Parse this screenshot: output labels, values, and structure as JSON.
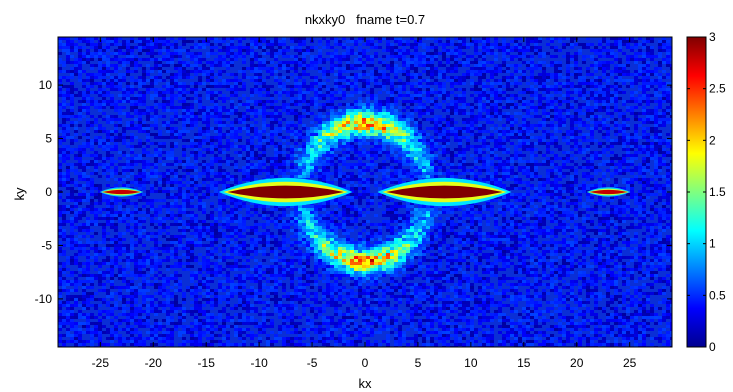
{
  "chart_data": {
    "type": "heatmap",
    "title": "nkxky0   fname t=0.7",
    "xlabel": "kx",
    "ylabel": "ky",
    "xlim": [
      -29,
      29
    ],
    "ylim": [
      -14.5,
      14.5
    ],
    "xticks": [
      -25,
      -20,
      -15,
      -10,
      -5,
      0,
      5,
      10,
      15,
      20,
      25
    ],
    "yticks": [
      10,
      5,
      0,
      -5,
      -10
    ],
    "colorbar": {
      "range": [
        0,
        3
      ],
      "ticks": [
        3,
        2.5,
        2,
        1.5,
        1,
        0.5,
        0
      ],
      "colormap": "jet"
    },
    "features": [
      {
        "label": "central lobe",
        "kx": -7.5,
        "ky": 0,
        "kx_halfwidth": 5.5,
        "ky_halfwidth": 0.6,
        "value": 3
      },
      {
        "label": "central lobe",
        "kx": 7.5,
        "ky": 0,
        "kx_halfwidth": 5.5,
        "ky_halfwidth": 0.6,
        "value": 3
      },
      {
        "label": "side streak",
        "kx": -23,
        "ky": 0,
        "kx_halfwidth": 1.8,
        "ky_halfwidth": 0.2,
        "value": 2.8
      },
      {
        "label": "side streak",
        "kx": 23,
        "ky": 0,
        "kx_halfwidth": 1.8,
        "ky_halfwidth": 0.2,
        "value": 2.8
      },
      {
        "label": "upper arc",
        "kx": 0,
        "ky": 6.5,
        "value": 2.1
      },
      {
        "label": "lower arc",
        "kx": 0,
        "ky": -6.5,
        "value": 2.1
      }
    ],
    "background_level": 0.3,
    "grid": false,
    "legend": "none"
  }
}
